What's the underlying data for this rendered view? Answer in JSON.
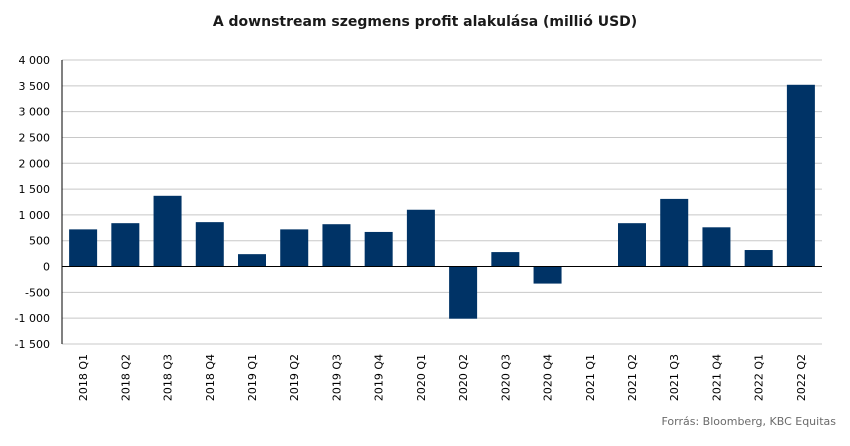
{
  "chart_data": {
    "type": "bar",
    "title": "A downstream szegmens profit alakulása (millió USD)",
    "source": "Forrás: Bloomberg, KBC Equitas",
    "color": "#003366",
    "categories": [
      "2018 Q1",
      "2018 Q2",
      "2018 Q3",
      "2018 Q4",
      "2019 Q1",
      "2019 Q2",
      "2019 Q3",
      "2019 Q4",
      "2020 Q1",
      "2020 Q2",
      "2020 Q3",
      "2020 Q4",
      "2021 Q1",
      "2021 Q2",
      "2021 Q3",
      "2021 Q4",
      "2022 Q1",
      "2022 Q2"
    ],
    "values": [
      720,
      840,
      1370,
      860,
      240,
      720,
      820,
      670,
      1100,
      -1010,
      280,
      -330,
      0,
      840,
      1310,
      760,
      320,
      3520
    ],
    "ylim": [
      -1500,
      4000
    ],
    "yticks": [
      -1500,
      -1000,
      -500,
      0,
      500,
      1000,
      1500,
      2000,
      2500,
      3000,
      3500,
      4000
    ],
    "ytick_labels": [
      "-1 500",
      "-1 000",
      "-500",
      "0",
      "500",
      "1 000",
      "1 500",
      "2 000",
      "2 500",
      "3 000",
      "3 500",
      "4 000"
    ],
    "grid": true,
    "xlabel": "",
    "ylabel": ""
  }
}
